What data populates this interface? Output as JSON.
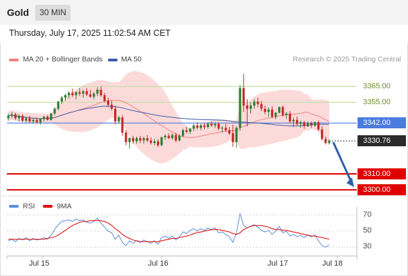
{
  "header": {
    "instrument": "Gold",
    "timeframe": "30 MIN",
    "timestamp": "Thursday, July 17, 2025 11:02:54 AM CET"
  },
  "legend": {
    "ma20": "MA 20 + Bollinger Bands",
    "ma50": "MA 50",
    "copyright": "Research © 2025 Trading Central",
    "rsi": "RSI",
    "rsi_ma": "9MA"
  },
  "colors": {
    "candle_up": "#2e7d32",
    "candle_down": "#c62828",
    "bollinger_fill": "#fbd3d3",
    "ma20": "#f08080",
    "ma50": "#3b5ba5",
    "resistance": "#c5e0a5",
    "pivot": "#4a7bdf",
    "support": "#e00000",
    "rsi_line": "#5b8dd9",
    "rsi_ma_line": "#e00000",
    "forecast_arrow": "#2f5fa8"
  },
  "levels": [
    {
      "value": 3365.0,
      "label": "3365.00",
      "kind": "resistance"
    },
    {
      "value": 3355.0,
      "label": "3355.00",
      "kind": "resistance"
    },
    {
      "value": 3342.0,
      "label": "3342.00",
      "kind": "pivot"
    },
    {
      "value": 3330.76,
      "label": "3330.76",
      "kind": "last"
    },
    {
      "value": 3310.0,
      "label": "3310.00",
      "kind": "support"
    },
    {
      "value": 3300.0,
      "label": "3300.00",
      "kind": "support"
    }
  ],
  "rsi_ticks": [
    "70",
    "50",
    "30"
  ],
  "x_axis": [
    "Jul 15",
    "Jul 16",
    "Jul 17",
    "Jul 18"
  ],
  "chart_data": {
    "type": "candlestick",
    "ylim": [
      3297,
      3376
    ],
    "rsi_ylim": [
      20,
      80
    ],
    "last_price": 3330.76,
    "candles": [
      [
        3345.0,
        3348.0,
        3343.5,
        3346.5
      ],
      [
        3346.5,
        3349.0,
        3345.0,
        3347.5
      ],
      [
        3347.5,
        3348.5,
        3344.0,
        3345.0
      ],
      [
        3345.0,
        3347.5,
        3343.0,
        3346.5
      ],
      [
        3346.5,
        3347.5,
        3342.5,
        3343.5
      ],
      [
        3343.5,
        3346.0,
        3342.0,
        3345.0
      ],
      [
        3345.0,
        3346.5,
        3342.0,
        3343.0
      ],
      [
        3343.0,
        3345.0,
        3341.5,
        3344.0
      ],
      [
        3344.0,
        3345.5,
        3342.0,
        3342.5
      ],
      [
        3342.5,
        3345.0,
        3341.0,
        3344.5
      ],
      [
        3344.5,
        3346.5,
        3343.0,
        3346.0
      ],
      [
        3346.0,
        3347.0,
        3343.5,
        3344.0
      ],
      [
        3344.0,
        3348.5,
        3343.5,
        3348.0
      ],
      [
        3348.0,
        3352.0,
        3347.0,
        3351.0
      ],
      [
        3351.0,
        3356.0,
        3350.0,
        3355.5
      ],
      [
        3355.5,
        3359.0,
        3354.0,
        3358.0
      ],
      [
        3358.0,
        3360.5,
        3356.0,
        3359.5
      ],
      [
        3359.5,
        3362.0,
        3357.5,
        3361.0
      ],
      [
        3361.0,
        3363.5,
        3358.5,
        3359.5
      ],
      [
        3359.5,
        3362.0,
        3357.0,
        3361.5
      ],
      [
        3361.5,
        3364.0,
        3359.0,
        3360.5
      ],
      [
        3360.5,
        3363.0,
        3358.0,
        3362.0
      ],
      [
        3362.0,
        3364.0,
        3359.0,
        3360.0
      ],
      [
        3360.0,
        3363.0,
        3358.0,
        3358.5
      ],
      [
        3358.5,
        3361.5,
        3357.0,
        3360.5
      ],
      [
        3360.5,
        3364.5,
        3359.0,
        3363.0
      ],
      [
        3363.0,
        3365.0,
        3358.5,
        3359.5
      ],
      [
        3359.5,
        3361.0,
        3355.0,
        3356.0
      ],
      [
        3356.0,
        3358.0,
        3352.0,
        3353.5
      ],
      [
        3353.5,
        3356.0,
        3350.0,
        3351.0
      ],
      [
        3351.0,
        3353.0,
        3341.0,
        3343.0
      ],
      [
        3343.0,
        3346.5,
        3341.5,
        3345.5
      ],
      [
        3345.5,
        3347.0,
        3334.0,
        3336.0
      ],
      [
        3336.0,
        3337.5,
        3328.0,
        3330.0
      ],
      [
        3330.0,
        3333.0,
        3326.0,
        3332.5
      ],
      [
        3332.5,
        3334.0,
        3329.0,
        3330.5
      ],
      [
        3330.5,
        3333.5,
        3329.0,
        3332.5
      ],
      [
        3332.5,
        3334.0,
        3329.5,
        3331.0
      ],
      [
        3331.0,
        3333.5,
        3329.0,
        3332.5
      ],
      [
        3332.5,
        3334.5,
        3330.0,
        3331.0
      ],
      [
        3331.0,
        3333.0,
        3328.5,
        3329.5
      ],
      [
        3329.5,
        3332.0,
        3328.0,
        3330.5
      ],
      [
        3330.5,
        3332.0,
        3327.0,
        3328.0
      ],
      [
        3328.0,
        3333.5,
        3327.5,
        3333.0
      ],
      [
        3333.0,
        3335.0,
        3331.5,
        3334.0
      ],
      [
        3334.0,
        3335.5,
        3332.0,
        3332.5
      ],
      [
        3332.5,
        3335.5,
        3331.5,
        3334.5
      ],
      [
        3334.5,
        3336.0,
        3330.0,
        3331.0
      ],
      [
        3331.0,
        3335.0,
        3330.5,
        3334.0
      ],
      [
        3334.0,
        3338.5,
        3333.0,
        3337.5
      ],
      [
        3337.5,
        3339.5,
        3335.5,
        3336.5
      ],
      [
        3336.5,
        3339.0,
        3335.0,
        3338.5
      ],
      [
        3338.5,
        3341.5,
        3337.0,
        3340.5
      ],
      [
        3340.5,
        3342.5,
        3338.0,
        3339.0
      ],
      [
        3339.0,
        3341.5,
        3337.5,
        3340.5
      ],
      [
        3340.5,
        3342.0,
        3338.0,
        3339.5
      ],
      [
        3339.5,
        3342.5,
        3338.5,
        3341.5
      ],
      [
        3341.5,
        3343.0,
        3339.5,
        3340.5
      ],
      [
        3340.5,
        3342.5,
        3339.0,
        3341.5
      ],
      [
        3341.5,
        3342.5,
        3337.5,
        3338.5
      ],
      [
        3338.5,
        3340.0,
        3336.0,
        3339.0
      ],
      [
        3339.0,
        3341.5,
        3336.5,
        3337.5
      ],
      [
        3337.5,
        3339.5,
        3334.5,
        3335.5
      ],
      [
        3335.5,
        3341.0,
        3327.0,
        3330.0
      ],
      [
        3330.0,
        3340.0,
        3326.5,
        3339.0
      ],
      [
        3339.0,
        3366.0,
        3337.0,
        3364.0
      ],
      [
        3364.0,
        3373.0,
        3349.0,
        3353.0
      ],
      [
        3353.0,
        3357.0,
        3340.0,
        3351.0
      ],
      [
        3351.0,
        3355.0,
        3348.0,
        3353.0
      ],
      [
        3353.0,
        3357.0,
        3351.0,
        3355.5
      ],
      [
        3355.5,
        3358.0,
        3352.0,
        3354.0
      ],
      [
        3354.0,
        3356.0,
        3349.5,
        3351.0
      ],
      [
        3351.0,
        3353.0,
        3347.5,
        3349.0
      ],
      [
        3349.0,
        3352.0,
        3346.0,
        3350.5
      ],
      [
        3350.5,
        3352.5,
        3345.0,
        3346.0
      ],
      [
        3346.0,
        3349.0,
        3344.5,
        3348.5
      ],
      [
        3348.5,
        3352.5,
        3348.0,
        3352.0
      ],
      [
        3352.0,
        3353.0,
        3346.0,
        3347.0
      ],
      [
        3347.0,
        3349.0,
        3344.5,
        3348.0
      ],
      [
        3348.0,
        3349.5,
        3342.0,
        3343.0
      ],
      [
        3343.0,
        3345.5,
        3339.5,
        3344.0
      ],
      [
        3344.0,
        3346.0,
        3340.5,
        3341.5
      ],
      [
        3341.5,
        3343.5,
        3339.0,
        3342.5
      ],
      [
        3342.5,
        3343.5,
        3338.5,
        3340.0
      ],
      [
        3340.0,
        3343.0,
        3339.5,
        3342.0
      ],
      [
        3342.0,
        3343.0,
        3339.0,
        3340.5
      ],
      [
        3340.5,
        3343.0,
        3339.5,
        3342.5
      ],
      [
        3342.5,
        3343.5,
        3337.0,
        3338.0
      ],
      [
        3338.0,
        3340.0,
        3331.0,
        3332.0
      ],
      [
        3332.0,
        3333.5,
        3328.5,
        3329.5
      ],
      [
        3329.5,
        3332.0,
        3328.5,
        3330.76
      ]
    ],
    "rsi": [
      38,
      40,
      37,
      41,
      39,
      42,
      38,
      41,
      39,
      40,
      42,
      40,
      45,
      52,
      58,
      62,
      63,
      64,
      62,
      65,
      63,
      64,
      61,
      60,
      62,
      66,
      60,
      55,
      50,
      48,
      40,
      45,
      36,
      32,
      38,
      35,
      38,
      36,
      39,
      37,
      35,
      38,
      34,
      42,
      44,
      41,
      44,
      39,
      43,
      49,
      47,
      51,
      53,
      50,
      53,
      51,
      54,
      52,
      54,
      48,
      49,
      46,
      43,
      36,
      48,
      72,
      57,
      54,
      56,
      58,
      55,
      51,
      49,
      51,
      46,
      50,
      56,
      48,
      50,
      44,
      46,
      43,
      45,
      42,
      45,
      43,
      45,
      38,
      32,
      30,
      33
    ],
    "rsi_ma": [
      40,
      40,
      40,
      40,
      40,
      40,
      40,
      40,
      40,
      40,
      40,
      41,
      42,
      43,
      45,
      48,
      51,
      54,
      57,
      59,
      61,
      62,
      62,
      63,
      63,
      63,
      63,
      62,
      60,
      57,
      53,
      50,
      46,
      43,
      41,
      39,
      38,
      37,
      37,
      37,
      37,
      37,
      37,
      38,
      39,
      40,
      41,
      41,
      42,
      43,
      44,
      45,
      47,
      48,
      49,
      50,
      51,
      52,
      52,
      52,
      51,
      50,
      49,
      47,
      46,
      48,
      52,
      54,
      56,
      57,
      57,
      57,
      56,
      55,
      53,
      52,
      52,
      51,
      51,
      50,
      49,
      48,
      47,
      46,
      45,
      44,
      44,
      43,
      42,
      41,
      40
    ]
  }
}
